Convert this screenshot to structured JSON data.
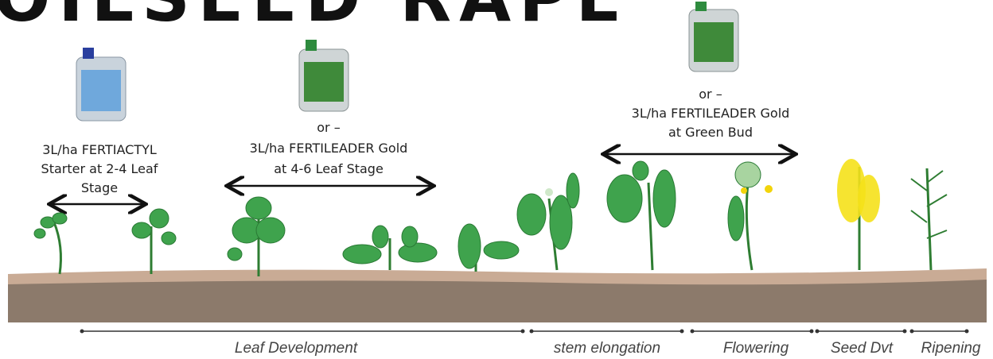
{
  "title": "OILSEED RAPE",
  "annotations": [
    {
      "lines": [
        "3L/ha FERTIACTYL",
        "Starter at 2-4 Leaf",
        "Stage"
      ]
    },
    {
      "lines": [
        "or –",
        "3L/ha FERTILEADER Gold",
        "at 4-6 Leaf Stage"
      ]
    },
    {
      "lines": [
        "or –",
        "3L/ha FERTILEADER Gold",
        "at Green Bud"
      ]
    }
  ],
  "stages": [
    "Leaf Development",
    "stem elongation",
    "Flowering",
    "Seed Dvt",
    "Ripening"
  ]
}
